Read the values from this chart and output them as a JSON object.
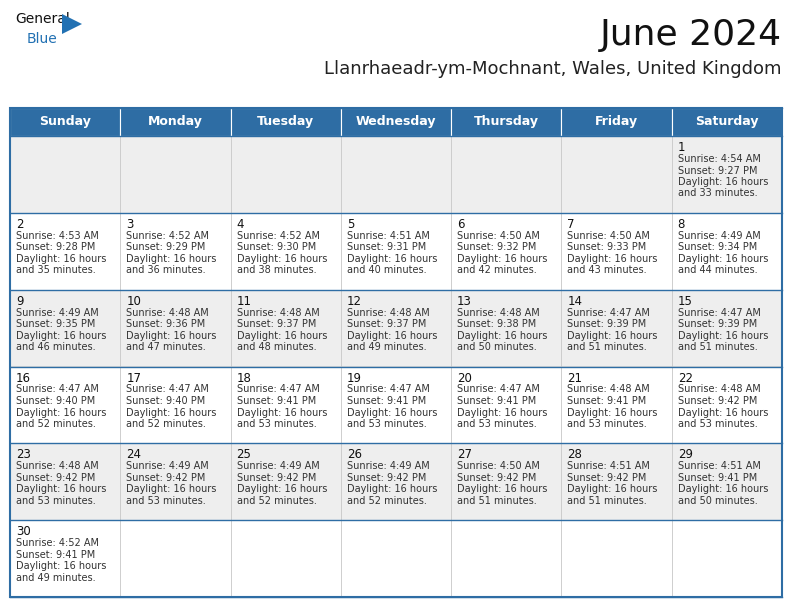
{
  "title": "June 2024",
  "subtitle": "Llanrhaeadr-ym-Mochnant, Wales, United Kingdom",
  "header_color": "#2E6DA4",
  "header_text_color": "#FFFFFF",
  "background_color": "#FFFFFF",
  "cell_bg_row0": "#EEEEEE",
  "cell_bg_row1": "#FFFFFF",
  "cell_bg_row2": "#EEEEEE",
  "cell_bg_row3": "#FFFFFF",
  "cell_bg_row4": "#EEEEEE",
  "cell_bg_row5": "#FFFFFF",
  "border_color": "#2E6DA4",
  "inner_border_color": "#AAAAAA",
  "day_names": [
    "Sunday",
    "Monday",
    "Tuesday",
    "Wednesday",
    "Thursday",
    "Friday",
    "Saturday"
  ],
  "calendar_data": [
    [
      null,
      null,
      null,
      null,
      null,
      null,
      {
        "day": "1",
        "sunrise": "4:54 AM",
        "sunset": "9:27 PM",
        "dl1": "16 hours",
        "dl2": "and 33 minutes."
      }
    ],
    [
      {
        "day": "2",
        "sunrise": "4:53 AM",
        "sunset": "9:28 PM",
        "dl1": "16 hours",
        "dl2": "and 35 minutes."
      },
      {
        "day": "3",
        "sunrise": "4:52 AM",
        "sunset": "9:29 PM",
        "dl1": "16 hours",
        "dl2": "and 36 minutes."
      },
      {
        "day": "4",
        "sunrise": "4:52 AM",
        "sunset": "9:30 PM",
        "dl1": "16 hours",
        "dl2": "and 38 minutes."
      },
      {
        "day": "5",
        "sunrise": "4:51 AM",
        "sunset": "9:31 PM",
        "dl1": "16 hours",
        "dl2": "and 40 minutes."
      },
      {
        "day": "6",
        "sunrise": "4:50 AM",
        "sunset": "9:32 PM",
        "dl1": "16 hours",
        "dl2": "and 42 minutes."
      },
      {
        "day": "7",
        "sunrise": "4:50 AM",
        "sunset": "9:33 PM",
        "dl1": "16 hours",
        "dl2": "and 43 minutes."
      },
      {
        "day": "8",
        "sunrise": "4:49 AM",
        "sunset": "9:34 PM",
        "dl1": "16 hours",
        "dl2": "and 44 minutes."
      }
    ],
    [
      {
        "day": "9",
        "sunrise": "4:49 AM",
        "sunset": "9:35 PM",
        "dl1": "16 hours",
        "dl2": "and 46 minutes."
      },
      {
        "day": "10",
        "sunrise": "4:48 AM",
        "sunset": "9:36 PM",
        "dl1": "16 hours",
        "dl2": "and 47 minutes."
      },
      {
        "day": "11",
        "sunrise": "4:48 AM",
        "sunset": "9:37 PM",
        "dl1": "16 hours",
        "dl2": "and 48 minutes."
      },
      {
        "day": "12",
        "sunrise": "4:48 AM",
        "sunset": "9:37 PM",
        "dl1": "16 hours",
        "dl2": "and 49 minutes."
      },
      {
        "day": "13",
        "sunrise": "4:48 AM",
        "sunset": "9:38 PM",
        "dl1": "16 hours",
        "dl2": "and 50 minutes."
      },
      {
        "day": "14",
        "sunrise": "4:47 AM",
        "sunset": "9:39 PM",
        "dl1": "16 hours",
        "dl2": "and 51 minutes."
      },
      {
        "day": "15",
        "sunrise": "4:47 AM",
        "sunset": "9:39 PM",
        "dl1": "16 hours",
        "dl2": "and 51 minutes."
      }
    ],
    [
      {
        "day": "16",
        "sunrise": "4:47 AM",
        "sunset": "9:40 PM",
        "dl1": "16 hours",
        "dl2": "and 52 minutes."
      },
      {
        "day": "17",
        "sunrise": "4:47 AM",
        "sunset": "9:40 PM",
        "dl1": "16 hours",
        "dl2": "and 52 minutes."
      },
      {
        "day": "18",
        "sunrise": "4:47 AM",
        "sunset": "9:41 PM",
        "dl1": "16 hours",
        "dl2": "and 53 minutes."
      },
      {
        "day": "19",
        "sunrise": "4:47 AM",
        "sunset": "9:41 PM",
        "dl1": "16 hours",
        "dl2": "and 53 minutes."
      },
      {
        "day": "20",
        "sunrise": "4:47 AM",
        "sunset": "9:41 PM",
        "dl1": "16 hours",
        "dl2": "and 53 minutes."
      },
      {
        "day": "21",
        "sunrise": "4:48 AM",
        "sunset": "9:41 PM",
        "dl1": "16 hours",
        "dl2": "and 53 minutes."
      },
      {
        "day": "22",
        "sunrise": "4:48 AM",
        "sunset": "9:42 PM",
        "dl1": "16 hours",
        "dl2": "and 53 minutes."
      }
    ],
    [
      {
        "day": "23",
        "sunrise": "4:48 AM",
        "sunset": "9:42 PM",
        "dl1": "16 hours",
        "dl2": "and 53 minutes."
      },
      {
        "day": "24",
        "sunrise": "4:49 AM",
        "sunset": "9:42 PM",
        "dl1": "16 hours",
        "dl2": "and 53 minutes."
      },
      {
        "day": "25",
        "sunrise": "4:49 AM",
        "sunset": "9:42 PM",
        "dl1": "16 hours",
        "dl2": "and 52 minutes."
      },
      {
        "day": "26",
        "sunrise": "4:49 AM",
        "sunset": "9:42 PM",
        "dl1": "16 hours",
        "dl2": "and 52 minutes."
      },
      {
        "day": "27",
        "sunrise": "4:50 AM",
        "sunset": "9:42 PM",
        "dl1": "16 hours",
        "dl2": "and 51 minutes."
      },
      {
        "day": "28",
        "sunrise": "4:51 AM",
        "sunset": "9:42 PM",
        "dl1": "16 hours",
        "dl2": "and 51 minutes."
      },
      {
        "day": "29",
        "sunrise": "4:51 AM",
        "sunset": "9:41 PM",
        "dl1": "16 hours",
        "dl2": "and 50 minutes."
      }
    ],
    [
      {
        "day": "30",
        "sunrise": "4:52 AM",
        "sunset": "9:41 PM",
        "dl1": "16 hours",
        "dl2": "and 49 minutes."
      },
      null,
      null,
      null,
      null,
      null,
      null
    ]
  ],
  "title_fontsize": 26,
  "subtitle_fontsize": 13,
  "day_header_fontsize": 9,
  "day_num_fontsize": 8.5,
  "info_fontsize": 7.0
}
